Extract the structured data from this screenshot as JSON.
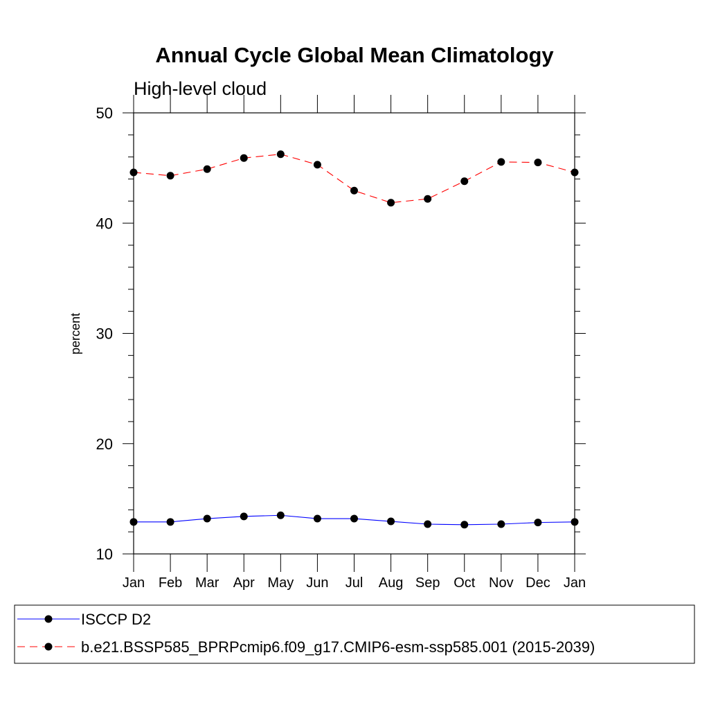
{
  "chart_data": {
    "type": "line",
    "title": "Annual Cycle Global Mean Climatology",
    "subtitle": "High-level cloud",
    "xlabel": "",
    "ylabel": "percent",
    "categories": [
      "Jan",
      "Feb",
      "Mar",
      "Apr",
      "May",
      "Jun",
      "Jul",
      "Aug",
      "Sep",
      "Oct",
      "Nov",
      "Dec",
      "Jan"
    ],
    "ylim": [
      10,
      50
    ],
    "yticks": [
      10,
      20,
      30,
      40,
      50
    ],
    "grid": false,
    "legend_position": "bottom",
    "series": [
      {
        "name": "ISCCP D2",
        "color": "#0000ff",
        "dash": "solid",
        "marker": "circle",
        "values": [
          12.9,
          12.9,
          13.2,
          13.4,
          13.5,
          13.2,
          13.2,
          12.95,
          12.7,
          12.65,
          12.7,
          12.85,
          12.9
        ]
      },
      {
        "name": "b.e21.BSSP585_BPRPcmip6.f09_g17.CMIP6-esm-ssp585.001 (2015-2039)",
        "color": "#ff0000",
        "dash": "dashed",
        "marker": "circle",
        "values": [
          44.6,
          44.3,
          44.9,
          45.9,
          46.25,
          45.3,
          42.95,
          41.85,
          42.2,
          43.8,
          45.55,
          45.5,
          44.6
        ]
      }
    ]
  }
}
